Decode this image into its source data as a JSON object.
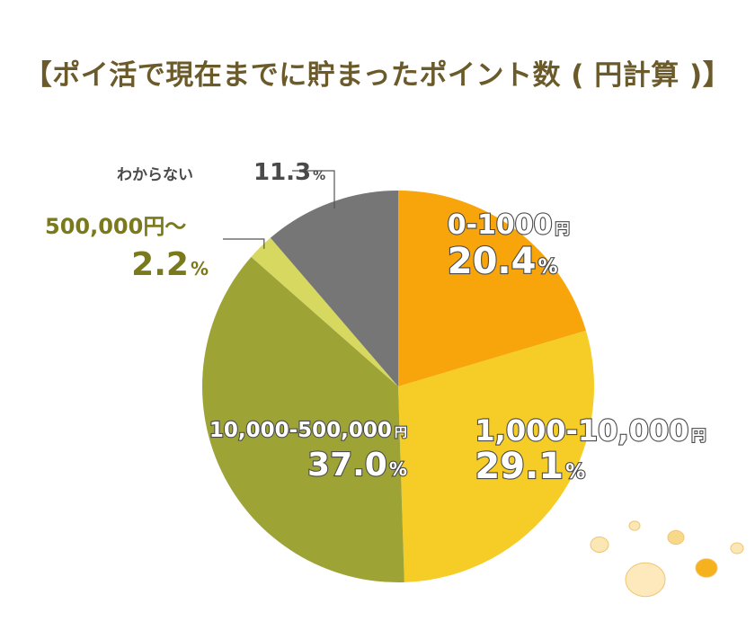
{
  "chart_data": {
    "type": "pie",
    "title": "【ポイ活で現在までに貯まったポイント数 ( 円計算 )】",
    "slices": [
      {
        "label": "0-1000",
        "unit": "円",
        "value": 20.4,
        "pct": "20.4",
        "pct_unit": "%",
        "color": "#f7a50a"
      },
      {
        "label": "1,000-10,000",
        "unit": "円",
        "value": 29.1,
        "pct": "29.1",
        "pct_unit": "%",
        "color": "#f5cd26"
      },
      {
        "label": "10,000-500,000",
        "unit": "円",
        "value": 37.0,
        "pct": "37.0",
        "pct_unit": "%",
        "color": "#9ea336"
      },
      {
        "label": "500,000円～",
        "unit": "",
        "value": 2.2,
        "pct": "2.2",
        "pct_unit": "%",
        "color": "#d6d860"
      },
      {
        "label": "わからない",
        "unit": "",
        "value": 11.3,
        "pct": "11.3",
        "pct_unit": "%",
        "color": "#767676"
      }
    ]
  }
}
